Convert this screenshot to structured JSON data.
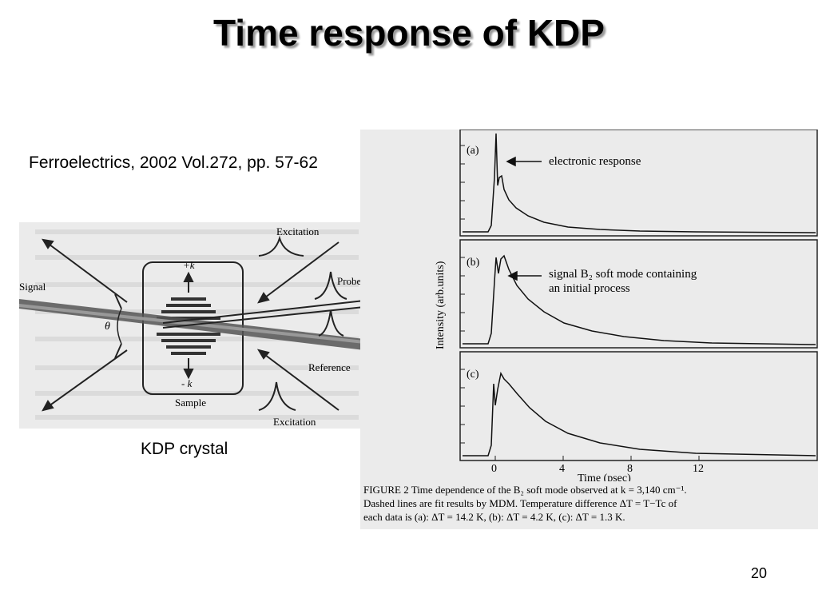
{
  "slide": {
    "title": "Time response of KDP",
    "citation": "Ferroelectrics, 2002 Vol.272, pp. 57-62",
    "kdp_caption": "KDP crystal",
    "page_number": "20"
  },
  "setup_figure": {
    "labels": {
      "excitation_top": "Excitation",
      "signal": "Signal",
      "probe": "Probe",
      "plus_k": "+k",
      "minus_k": "- k",
      "theta": "θ",
      "reference": "Reference",
      "sample": "Sample",
      "excitation_bottom": "Excitation"
    }
  },
  "response_figure": {
    "panels": [
      {
        "id": "a",
        "label": "(a)",
        "annotation_lines": [
          "electronic response"
        ]
      },
      {
        "id": "b",
        "label": "(b)",
        "annotation_lines": [
          "signal B₂ soft mode containing",
          "an initial process"
        ]
      },
      {
        "id": "c",
        "label": "(c)",
        "annotation_lines": []
      }
    ],
    "ylabel": "Intensity (arb.units)",
    "xlabel": "Time (psec)",
    "xticks": [
      "0",
      "4",
      "8",
      "12"
    ],
    "caption_lines": [
      "FIGURE 2    Time dependence of the B₂ soft mode observed at k = 3,140 cm⁻¹.",
      "Dashed lines are fit results by MDM. Temperature difference ΔT = T−Tc of",
      "each data is (a): ΔT = 14.2 K, (b): ΔT = 4.2 K, (c): ΔT = 1.3 K."
    ]
  }
}
